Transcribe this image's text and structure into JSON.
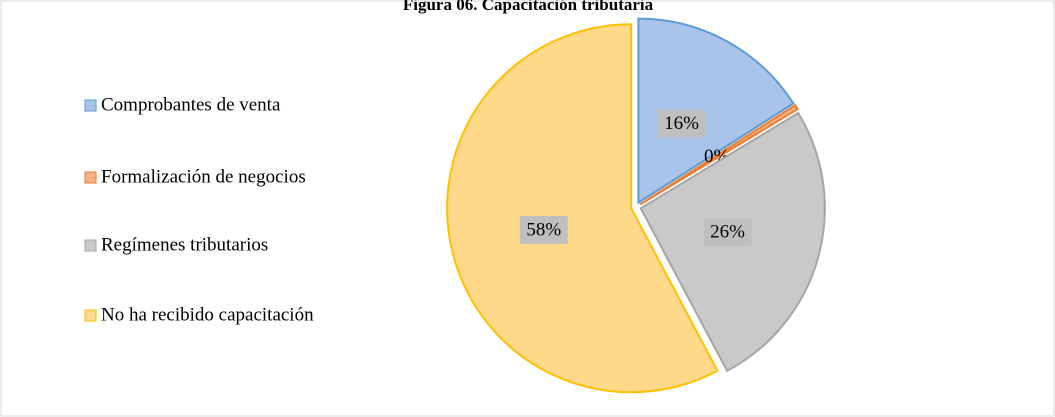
{
  "chart_data": {
    "type": "pie",
    "title": "Figura 06. Capacitación tributaria",
    "categories": [
      "Comprobantes de venta",
      "Formalización de negocios",
      "Regímenes tributarios",
      "No ha recibido capacitación"
    ],
    "values": [
      16,
      0.4,
      26,
      58
    ],
    "value_labels": [
      "16%",
      "0%",
      "26%",
      "58%"
    ],
    "colors": [
      "#a9c4eb",
      "#f4b183",
      "#c9c9c9",
      "#ffd98a"
    ],
    "edge_colors": [
      "#5b9bd5",
      "#ed7d31",
      "#a5a5a5",
      "#ffc000"
    ],
    "legend": "left"
  }
}
